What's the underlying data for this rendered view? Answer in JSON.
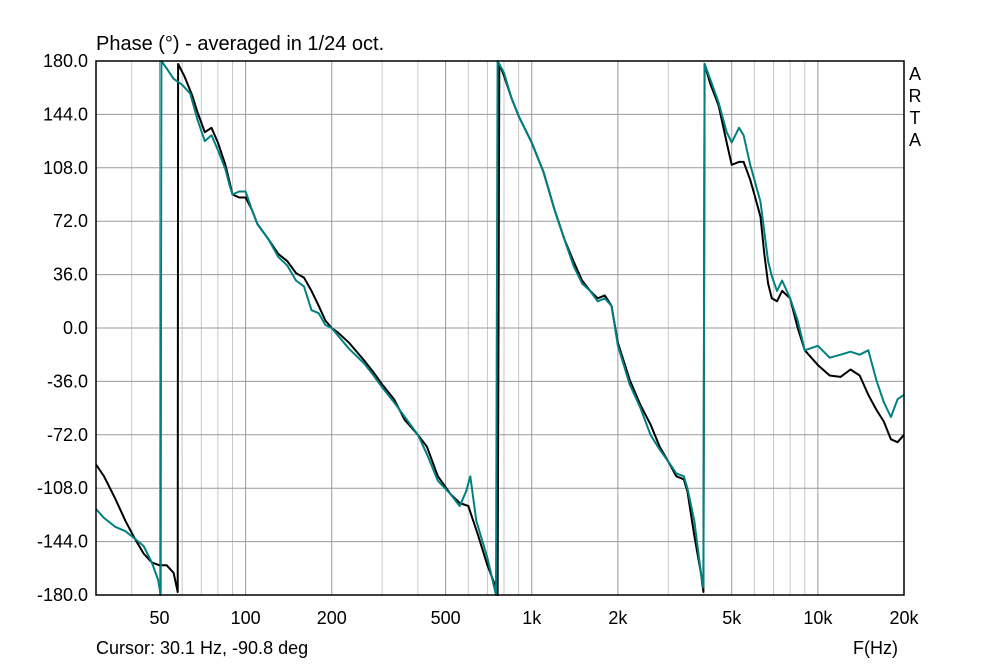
{
  "chart_data": {
    "type": "line",
    "title": "Phase (°) - averaged in 1/24 oct.",
    "xlabel": "F(Hz)",
    "ylabel": "",
    "xscale": "log",
    "xlim": [
      30,
      20000
    ],
    "ylim": [
      -180,
      180
    ],
    "x_ticks": [
      {
        "value": 50,
        "label": "50"
      },
      {
        "value": 100,
        "label": "100"
      },
      {
        "value": 200,
        "label": "200"
      },
      {
        "value": 500,
        "label": "500"
      },
      {
        "value": 1000,
        "label": "1k"
      },
      {
        "value": 2000,
        "label": "2k"
      },
      {
        "value": 5000,
        "label": "5k"
      },
      {
        "value": 10000,
        "label": "10k"
      },
      {
        "value": 20000,
        "label": "20k"
      }
    ],
    "y_ticks": [
      "180.0",
      "144.0",
      "108.0",
      "72.0",
      "36.0",
      "0.0",
      "-36.0",
      "-72.0",
      "-108.0",
      "-144.0",
      "-180.0"
    ],
    "grid": true,
    "watermark": [
      "A",
      "R",
      "T",
      "A"
    ],
    "cursor_text": "Cursor: 30.1 Hz, -90.8 deg",
    "colors": {
      "series1": "#000000",
      "series2": "#008080"
    },
    "series": [
      {
        "color": "#000000",
        "points": [
          [
            30,
            -92
          ],
          [
            32,
            -100
          ],
          [
            35,
            -115
          ],
          [
            38,
            -130
          ],
          [
            41,
            -142
          ],
          [
            44,
            -152
          ],
          [
            47,
            -158
          ],
          [
            50,
            -160
          ],
          [
            53,
            -160
          ],
          [
            56,
            -165
          ],
          [
            57.9,
            -178
          ],
          [
            58,
            0
          ],
          [
            58.1,
            178
          ],
          [
            61,
            170
          ],
          [
            65,
            157
          ],
          [
            68,
            145
          ],
          [
            72,
            132
          ],
          [
            76,
            135
          ],
          [
            80,
            125
          ],
          [
            85,
            110
          ],
          [
            88,
            98
          ],
          [
            90,
            90
          ],
          [
            95,
            88
          ],
          [
            100,
            88
          ],
          [
            105,
            80
          ],
          [
            110,
            70
          ],
          [
            120,
            60
          ],
          [
            130,
            50
          ],
          [
            140,
            45
          ],
          [
            150,
            37
          ],
          [
            160,
            34
          ],
          [
            170,
            25
          ],
          [
            180,
            15
          ],
          [
            190,
            5
          ],
          [
            200,
            0
          ],
          [
            210,
            -3
          ],
          [
            230,
            -10
          ],
          [
            260,
            -22
          ],
          [
            280,
            -30
          ],
          [
            300,
            -38
          ],
          [
            330,
            -48
          ],
          [
            360,
            -62
          ],
          [
            400,
            -72
          ],
          [
            430,
            -80
          ],
          [
            470,
            -100
          ],
          [
            520,
            -112
          ],
          [
            560,
            -118
          ],
          [
            600,
            -120
          ],
          [
            650,
            -140
          ],
          [
            700,
            -160
          ],
          [
            740,
            -172
          ],
          [
            760,
            -180
          ],
          [
            765,
            0
          ],
          [
            770,
            178
          ],
          [
            800,
            170
          ],
          [
            850,
            155
          ],
          [
            900,
            143
          ],
          [
            1000,
            125
          ],
          [
            1100,
            105
          ],
          [
            1200,
            80
          ],
          [
            1300,
            60
          ],
          [
            1400,
            45
          ],
          [
            1500,
            32
          ],
          [
            1600,
            25
          ],
          [
            1700,
            20
          ],
          [
            1800,
            22
          ],
          [
            1900,
            15
          ],
          [
            2000,
            -10
          ],
          [
            2200,
            -35
          ],
          [
            2400,
            -52
          ],
          [
            2600,
            -65
          ],
          [
            2800,
            -80
          ],
          [
            3000,
            -90
          ],
          [
            3200,
            -100
          ],
          [
            3400,
            -102
          ],
          [
            3500,
            -110
          ],
          [
            3700,
            -140
          ],
          [
            3900,
            -165
          ],
          [
            3980,
            -178
          ],
          [
            4000,
            0
          ],
          [
            4020,
            178
          ],
          [
            4200,
            165
          ],
          [
            4500,
            150
          ],
          [
            4800,
            125
          ],
          [
            5000,
            110
          ],
          [
            5300,
            112
          ],
          [
            5500,
            112
          ],
          [
            5800,
            100
          ],
          [
            6000,
            90
          ],
          [
            6300,
            75
          ],
          [
            6500,
            50
          ],
          [
            6700,
            30
          ],
          [
            6900,
            20
          ],
          [
            7200,
            18
          ],
          [
            7500,
            25
          ],
          [
            8000,
            20
          ],
          [
            8500,
            0
          ],
          [
            9000,
            -15
          ],
          [
            10000,
            -25
          ],
          [
            11000,
            -32
          ],
          [
            12000,
            -33
          ],
          [
            13000,
            -28
          ],
          [
            14000,
            -32
          ],
          [
            15000,
            -45
          ],
          [
            16000,
            -55
          ],
          [
            17000,
            -63
          ],
          [
            18000,
            -75
          ],
          [
            19000,
            -77
          ],
          [
            20000,
            -72
          ]
        ]
      },
      {
        "color": "#008080",
        "points": [
          [
            30,
            -122
          ],
          [
            32,
            -128
          ],
          [
            35,
            -134
          ],
          [
            38,
            -137
          ],
          [
            41,
            -142
          ],
          [
            44,
            -147
          ],
          [
            47,
            -158
          ],
          [
            49.5,
            -170
          ],
          [
            50.5,
            -180
          ],
          [
            50.6,
            0
          ],
          [
            50.8,
            180
          ],
          [
            53,
            175
          ],
          [
            56,
            168
          ],
          [
            60,
            164
          ],
          [
            64,
            158
          ],
          [
            68,
            140
          ],
          [
            72,
            126
          ],
          [
            76,
            130
          ],
          [
            80,
            120
          ],
          [
            85,
            107
          ],
          [
            88,
            96
          ],
          [
            90,
            90
          ],
          [
            95,
            92
          ],
          [
            100,
            92
          ],
          [
            105,
            80
          ],
          [
            110,
            70
          ],
          [
            120,
            60
          ],
          [
            130,
            48
          ],
          [
            140,
            42
          ],
          [
            150,
            32
          ],
          [
            160,
            28
          ],
          [
            170,
            12
          ],
          [
            180,
            10
          ],
          [
            190,
            2
          ],
          [
            200,
            0
          ],
          [
            210,
            -5
          ],
          [
            230,
            -14
          ],
          [
            260,
            -24
          ],
          [
            280,
            -32
          ],
          [
            300,
            -40
          ],
          [
            330,
            -50
          ],
          [
            360,
            -60
          ],
          [
            400,
            -72
          ],
          [
            430,
            -85
          ],
          [
            470,
            -103
          ],
          [
            520,
            -112
          ],
          [
            560,
            -120
          ],
          [
            590,
            -110
          ],
          [
            610,
            -100
          ],
          [
            640,
            -130
          ],
          [
            700,
            -155
          ],
          [
            740,
            -175
          ],
          [
            750,
            -180
          ],
          [
            755,
            0
          ],
          [
            760,
            180
          ],
          [
            800,
            172
          ],
          [
            850,
            155
          ],
          [
            900,
            143
          ],
          [
            1000,
            125
          ],
          [
            1100,
            105
          ],
          [
            1200,
            80
          ],
          [
            1300,
            60
          ],
          [
            1400,
            42
          ],
          [
            1500,
            30
          ],
          [
            1600,
            25
          ],
          [
            1700,
            18
          ],
          [
            1800,
            20
          ],
          [
            1900,
            15
          ],
          [
            2000,
            -12
          ],
          [
            2200,
            -38
          ],
          [
            2400,
            -54
          ],
          [
            2600,
            -72
          ],
          [
            2800,
            -82
          ],
          [
            3000,
            -90
          ],
          [
            3200,
            -98
          ],
          [
            3400,
            -100
          ],
          [
            3500,
            -108
          ],
          [
            3700,
            -130
          ],
          [
            3900,
            -165
          ],
          [
            3980,
            -175
          ],
          [
            4000,
            0
          ],
          [
            4020,
            178
          ],
          [
            4200,
            168
          ],
          [
            4500,
            152
          ],
          [
            4800,
            132
          ],
          [
            5000,
            125
          ],
          [
            5300,
            135
          ],
          [
            5500,
            130
          ],
          [
            5800,
            110
          ],
          [
            6000,
            100
          ],
          [
            6300,
            85
          ],
          [
            6500,
            65
          ],
          [
            6700,
            45
          ],
          [
            6900,
            35
          ],
          [
            7200,
            25
          ],
          [
            7500,
            32
          ],
          [
            8000,
            20
          ],
          [
            8500,
            5
          ],
          [
            9000,
            -15
          ],
          [
            10000,
            -12
          ],
          [
            11000,
            -20
          ],
          [
            12000,
            -18
          ],
          [
            13000,
            -16
          ],
          [
            14000,
            -18
          ],
          [
            15000,
            -15
          ],
          [
            16000,
            -35
          ],
          [
            17000,
            -50
          ],
          [
            18000,
            -60
          ],
          [
            19000,
            -48
          ],
          [
            20000,
            -45
          ]
        ]
      }
    ]
  }
}
